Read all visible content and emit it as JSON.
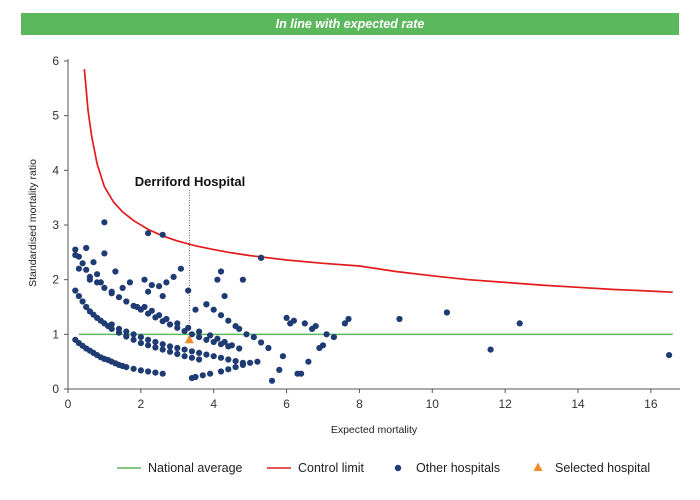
{
  "banner": {
    "text": "In line with expected rate"
  },
  "chart_data": {
    "type": "scatter",
    "title": "In line with expected rate",
    "xlabel": "Expected mortality",
    "ylabel": "Standardised mortality ratio",
    "xlim": [
      0,
      16.8
    ],
    "ylim": [
      0,
      6
    ],
    "x_ticks": [
      0,
      2,
      4,
      6,
      8,
      10,
      12,
      14,
      16
    ],
    "y_ticks": [
      0,
      1,
      2,
      3,
      4,
      5,
      6
    ],
    "grid": false,
    "legend_position": "bottom",
    "national_average": 1,
    "colors": {
      "national_average": "#5cb85c",
      "control_limit": "#e31a1c",
      "other_hospitals": "#1f3b73",
      "selected_hospital": "#f28c28"
    },
    "annotation": {
      "label": "Derriford Hospital",
      "x": 3.33,
      "y": 0.9
    },
    "series": [
      {
        "name": "National average",
        "kind": "line",
        "x": [
          0.3,
          16.6
        ],
        "y": [
          1,
          1
        ]
      },
      {
        "name": "Control limit",
        "kind": "line",
        "x": [
          0.45,
          0.55,
          0.65,
          0.8,
          1.0,
          1.25,
          1.5,
          1.8,
          2.2,
          2.6,
          3.0,
          3.5,
          4.0,
          4.5,
          5.0,
          6.0,
          7.0,
          8.0,
          9.0,
          10.0,
          11.0,
          12.0,
          13.0,
          14.0,
          15.0,
          16.0,
          16.6
        ],
        "y": [
          5.85,
          5.1,
          4.62,
          4.12,
          3.7,
          3.42,
          3.24,
          3.08,
          2.92,
          2.8,
          2.71,
          2.62,
          2.55,
          2.49,
          2.44,
          2.36,
          2.3,
          2.25,
          2.15,
          2.07,
          2.0,
          1.95,
          1.9,
          1.86,
          1.82,
          1.79,
          1.77
        ]
      },
      {
        "name": "Other hospitals",
        "kind": "scatter",
        "x": [
          0.2,
          0.3,
          0.4,
          0.5,
          0.6,
          0.7,
          0.8,
          0.9,
          1.0,
          1.1,
          1.2,
          1.3,
          1.4,
          1.5,
          1.6,
          1.8,
          2.0,
          2.2,
          2.4,
          2.6,
          0.2,
          0.3,
          0.4,
          0.5,
          0.6,
          0.7,
          0.8,
          0.9,
          1.0,
          1.1,
          1.2,
          1.4,
          1.6,
          1.8,
          2.0,
          2.2,
          2.4,
          2.6,
          2.8,
          3.0,
          3.2,
          3.4,
          3.6,
          0.2,
          0.3,
          0.4,
          0.5,
          0.6,
          0.8,
          1.0,
          1.2,
          1.4,
          1.6,
          1.8,
          2.0,
          2.2,
          2.4,
          2.6,
          2.8,
          3.0,
          3.2,
          3.4,
          3.6,
          3.8,
          4.0,
          4.2,
          4.4,
          1.2,
          1.4,
          1.6,
          1.8,
          2.0,
          2.2,
          2.4,
          2.6,
          2.8,
          3.0,
          3.2,
          3.4,
          3.6,
          3.8,
          4.0,
          4.2,
          4.4,
          4.6,
          4.8,
          0.2,
          0.3,
          0.5,
          0.6,
          0.7,
          0.8,
          0.9,
          1.0,
          1.2,
          1.3,
          1.5,
          1.7,
          1.9,
          2.1,
          2.2,
          2.3,
          2.5,
          2.6,
          2.7,
          2.9,
          3.1,
          3.3,
          3.5,
          3.8,
          4.1,
          4.2,
          4.3,
          4.8,
          5.3,
          2.1,
          2.3,
          2.5,
          2.7,
          3.0,
          3.3,
          3.6,
          3.9,
          4.1,
          4.3,
          4.5,
          4.7,
          3.4,
          3.5,
          3.7,
          3.9,
          4.2,
          4.4,
          4.6,
          4.8,
          5.0,
          5.2,
          3.8,
          4.0,
          4.2,
          4.4,
          4.6,
          4.7,
          4.9,
          5.1,
          5.3,
          5.5,
          5.6,
          5.8,
          5.9,
          6.0,
          6.1,
          6.2,
          6.3,
          6.4,
          6.5,
          6.6,
          6.7,
          6.8,
          6.9,
          7.0,
          7.1,
          7.3,
          7.6,
          7.7,
          9.1,
          10.4,
          11.6,
          12.4,
          16.5
        ],
        "y": [
          0.9,
          0.84,
          0.79,
          0.74,
          0.7,
          0.66,
          0.62,
          0.58,
          0.55,
          0.53,
          0.5,
          0.47,
          0.44,
          0.42,
          0.4,
          0.37,
          0.34,
          0.32,
          0.3,
          0.28,
          1.8,
          1.7,
          1.6,
          1.5,
          1.42,
          1.36,
          1.3,
          1.25,
          1.2,
          1.15,
          1.1,
          1.03,
          0.96,
          0.9,
          0.84,
          0.8,
          0.76,
          0.72,
          0.68,
          0.64,
          0.6,
          0.57,
          0.54,
          2.55,
          2.42,
          2.3,
          2.18,
          2.05,
          1.95,
          1.85,
          1.78,
          1.68,
          1.6,
          1.52,
          1.45,
          1.38,
          1.31,
          1.24,
          1.18,
          1.12,
          1.06,
          1.0,
          0.95,
          0.9,
          0.86,
          0.82,
          0.78,
          1.18,
          1.1,
          1.05,
          1.0,
          0.95,
          0.9,
          0.86,
          0.82,
          0.78,
          0.75,
          0.72,
          0.69,
          0.66,
          0.63,
          0.6,
          0.57,
          0.54,
          0.51,
          0.48,
          2.45,
          2.2,
          2.58,
          2.0,
          2.32,
          2.1,
          1.95,
          2.48,
          1.75,
          2.15,
          1.85,
          1.95,
          1.5,
          2.0,
          1.78,
          1.9,
          1.88,
          1.7,
          1.95,
          2.05,
          2.2,
          1.8,
          1.45,
          1.55,
          2.0,
          2.15,
          1.7,
          2.0,
          2.4,
          1.5,
          1.43,
          1.35,
          1.28,
          1.2,
          1.12,
          1.05,
          0.98,
          0.92,
          0.86,
          0.8,
          0.74,
          0.2,
          0.22,
          0.25,
          0.28,
          0.32,
          0.36,
          0.4,
          0.44,
          0.48,
          0.5,
          1.55,
          1.45,
          1.35,
          1.25,
          1.15,
          1.1,
          1.0,
          0.95,
          0.85,
          0.75,
          0.15,
          0.35,
          0.6,
          1.3,
          1.2,
          1.25,
          0.28,
          0.28,
          1.2,
          0.5,
          1.1,
          1.15,
          0.75,
          0.8,
          1.0,
          0.95,
          1.2,
          1.28,
          1.28,
          1.4,
          0.72,
          1.2,
          0.62
        ]
      },
      {
        "name": "Selected hospital",
        "kind": "marker",
        "x": [
          3.33
        ],
        "y": [
          0.9
        ]
      }
    ]
  },
  "emphasis_points": {
    "x": [
      1.0,
      2.2,
      2.6,
      5.3
    ],
    "y": [
      3.05,
      2.85,
      2.82,
      2.4
    ]
  }
}
